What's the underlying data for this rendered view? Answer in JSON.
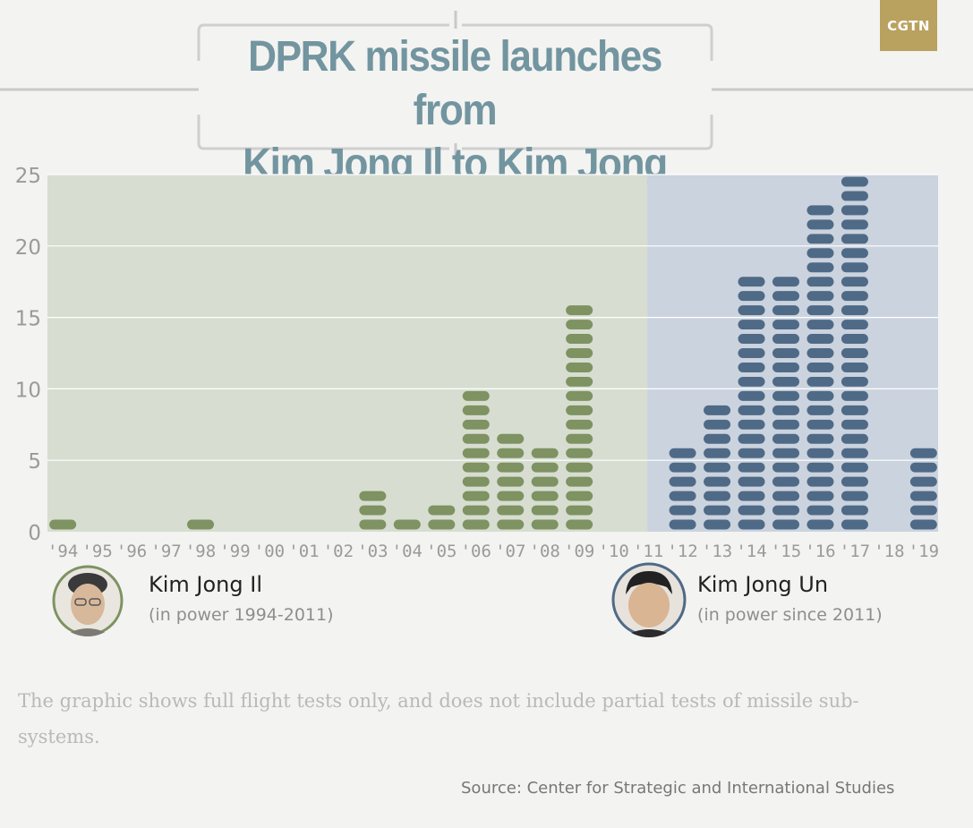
{
  "logo": {
    "text": "CGTN",
    "color": "#b9a15f"
  },
  "title": {
    "line1": "DPRK missile launches from",
    "line2": "Kim Jong Il to Kim Jong Un",
    "color": "#7295a0"
  },
  "chart_data": {
    "type": "bar",
    "categories": [
      "'94",
      "'95",
      "'96",
      "'97",
      "'98",
      "'99",
      "'00",
      "'01",
      "'02",
      "'03",
      "'04",
      "'05",
      "'06",
      "'07",
      "'08",
      "'09",
      "'10",
      "'11",
      "'12",
      "'13",
      "'14",
      "'15",
      "'16",
      "'17",
      "'18",
      "'19"
    ],
    "values": [
      1,
      0,
      0,
      0,
      1,
      0,
      0,
      0,
      0,
      3,
      1,
      2,
      10,
      7,
      6,
      16,
      0,
      0,
      6,
      9,
      18,
      18,
      23,
      25,
      0,
      6
    ],
    "ylim": [
      0,
      25
    ],
    "yticks": [
      "0",
      "5",
      "10",
      "15",
      "20",
      "25"
    ],
    "grid": true,
    "eras": [
      {
        "leader": "Kim Jong Il",
        "from": "'94",
        "to": "'10",
        "background": "#d7ddd0",
        "bar_color": "#7e9262"
      },
      {
        "leader": "Kim Jong Un",
        "from": "'11",
        "to": "'19",
        "background": "#cbd3df",
        "bar_color": "#4f6a86"
      }
    ]
  },
  "leaders": [
    {
      "name": "Kim Jong Il",
      "term": "(in power 1994-2011)",
      "ring_color": "#7e9262",
      "icon": "kim-jong-il-portrait-icon"
    },
    {
      "name": "Kim Jong Un",
      "term": "(in power since 2011)",
      "ring_color": "#4f6a86",
      "icon": "kim-jong-un-portrait-icon"
    }
  ],
  "note": "The graphic shows full flight tests only, and does not include partial tests of missile sub-systems.",
  "source": "Source: Center for Strategic and International Studies"
}
